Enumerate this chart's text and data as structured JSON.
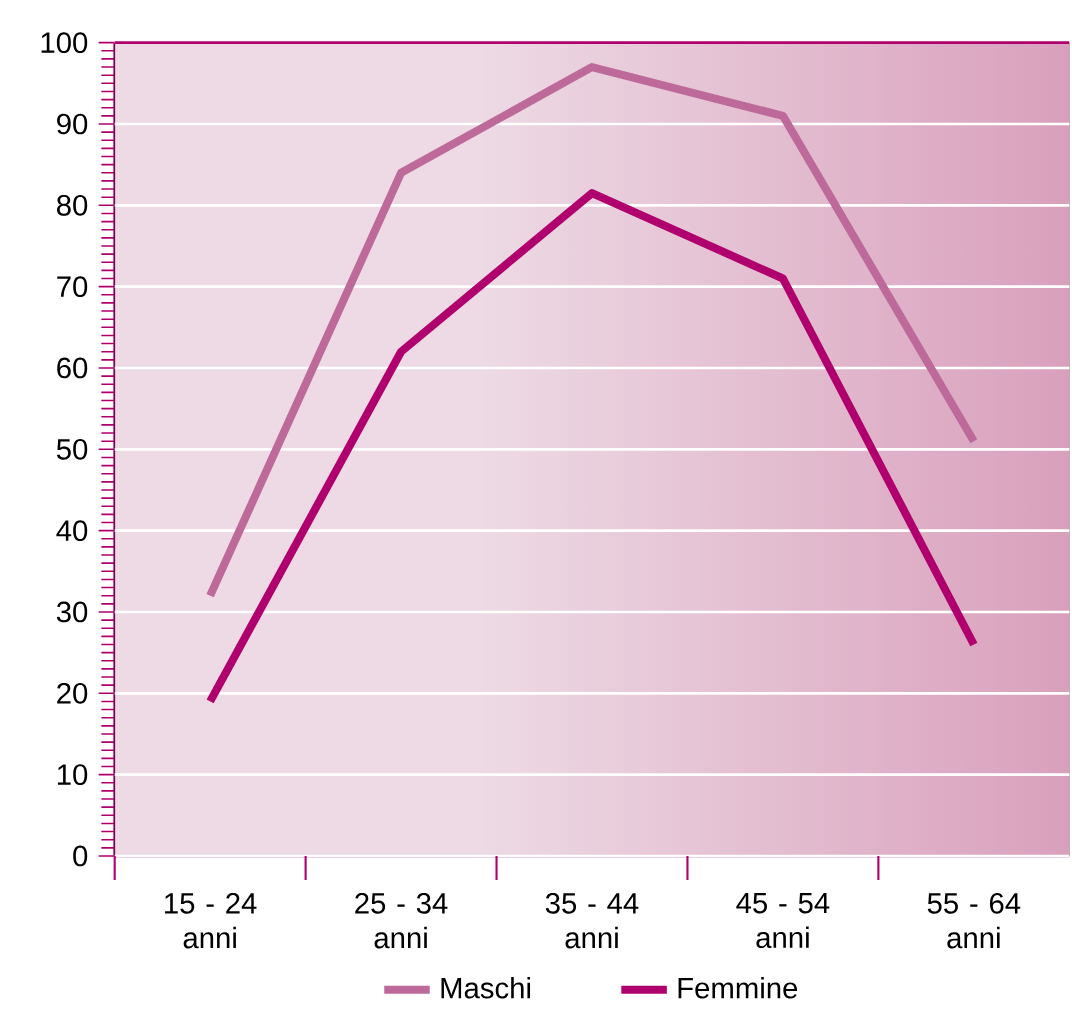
{
  "chart_data": {
    "type": "line",
    "categories": [
      "15 - 24 anni",
      "25 - 34 anni",
      "35 - 44 anni",
      "45 - 54 anni",
      "55 - 64 anni"
    ],
    "series": [
      {
        "name": "Maschi",
        "color": "#bd6a9a",
        "values": [
          32,
          84,
          97,
          91,
          51
        ]
      },
      {
        "name": "Femmine",
        "color": "#b0006e",
        "values": [
          19,
          62,
          81.5,
          71,
          26
        ]
      }
    ],
    "ylim": [
      0,
      100
    ],
    "yticks": [
      0,
      10,
      20,
      30,
      40,
      50,
      60,
      70,
      80,
      90,
      100
    ],
    "grid": "y",
    "legend": "bottom",
    "marker": "none",
    "line_style": "solid"
  }
}
